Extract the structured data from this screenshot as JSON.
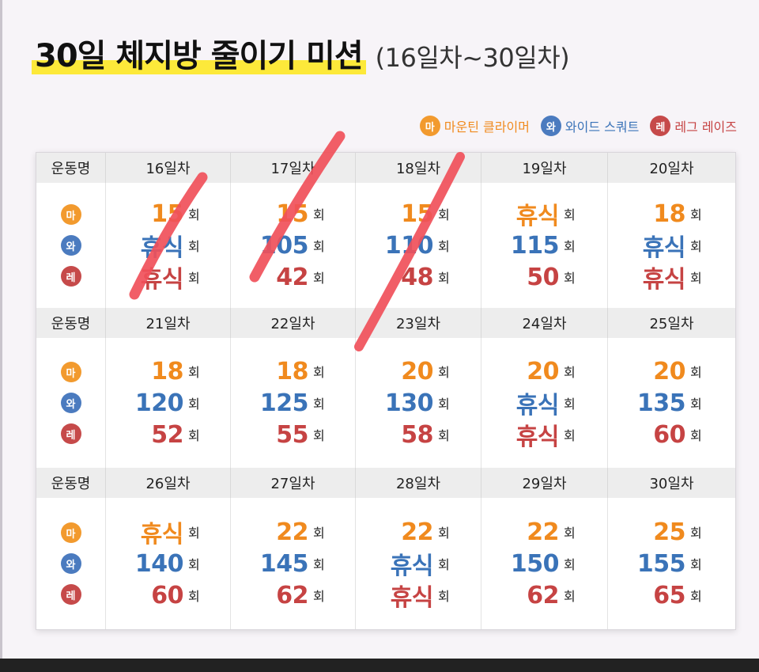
{
  "title": {
    "main": "30일 체지방 줄이기 미션",
    "sub": "(16일차~30일차)"
  },
  "legend": [
    {
      "badge": "마",
      "label": "마운틴 클라이머",
      "color": "#f29a2e",
      "icon": "orange-circle-badge"
    },
    {
      "badge": "와",
      "label": "와이드 스쿼트",
      "color": "#4b7bbf",
      "icon": "blue-circle-badge"
    },
    {
      "badge": "레",
      "label": "레그 레이즈",
      "color": "#c64a4a",
      "icon": "red-circle-badge"
    }
  ],
  "table": {
    "exercise_header": "운동명",
    "unit": "회",
    "exercise_badges": [
      "마",
      "와",
      "레"
    ],
    "blocks": [
      {
        "days": [
          {
            "label": "16일차",
            "values": [
              "15",
              "휴식",
              "휴식"
            ]
          },
          {
            "label": "17일차",
            "values": [
              "15",
              "105",
              "42"
            ]
          },
          {
            "label": "18일차",
            "values": [
              "15",
              "110",
              "48"
            ]
          },
          {
            "label": "19일차",
            "values": [
              "휴식",
              "115",
              "50"
            ]
          },
          {
            "label": "20일차",
            "values": [
              "18",
              "휴식",
              "휴식"
            ]
          }
        ]
      },
      {
        "days": [
          {
            "label": "21일차",
            "values": [
              "18",
              "120",
              "52"
            ]
          },
          {
            "label": "22일차",
            "values": [
              "18",
              "125",
              "55"
            ]
          },
          {
            "label": "23일차",
            "values": [
              "20",
              "130",
              "58"
            ]
          },
          {
            "label": "24일차",
            "values": [
              "20",
              "휴식",
              "휴식"
            ]
          },
          {
            "label": "25일차",
            "values": [
              "20",
              "135",
              "60"
            ]
          }
        ]
      },
      {
        "days": [
          {
            "label": "26일차",
            "values": [
              "휴식",
              "140",
              "60"
            ]
          },
          {
            "label": "27일차",
            "values": [
              "22",
              "145",
              "62"
            ]
          },
          {
            "label": "28일차",
            "values": [
              "22",
              "휴식",
              "휴식"
            ]
          },
          {
            "label": "29일차",
            "values": [
              "22",
              "150",
              "62"
            ]
          },
          {
            "label": "30일차",
            "values": [
              "25",
              "155",
              "65"
            ]
          }
        ]
      }
    ]
  },
  "colors": {
    "orange": "#f08a1e",
    "blue": "#3a73b8",
    "red": "#c64343",
    "highlight": "#fde93a",
    "strikethrough": "#f0505a"
  },
  "annotations": {
    "strikethrough_days": [
      "16일차",
      "17일차",
      "18일차"
    ]
  }
}
